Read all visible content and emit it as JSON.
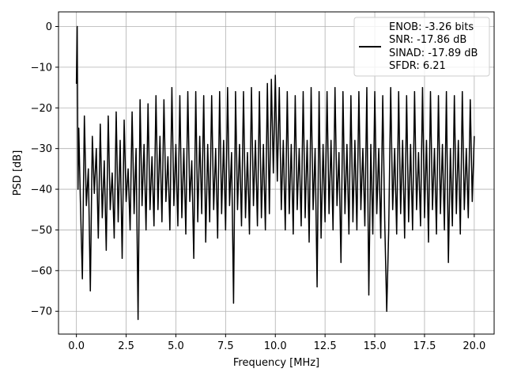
{
  "chart_data": {
    "type": "line",
    "title": "",
    "xlabel": "Frequency [MHz]",
    "ylabel": "PSD [dB]",
    "xlim": [
      -0.9,
      21.0
    ],
    "ylim": [
      -75.6,
      3.6
    ],
    "x_ticks": [
      0.0,
      2.5,
      5.0,
      7.5,
      10.0,
      12.5,
      15.0,
      17.5,
      20.0
    ],
    "x_tick_labels": [
      "0.0",
      "2.5",
      "5.0",
      "7.5",
      "10.0",
      "12.5",
      "15.0",
      "17.5",
      "20.0"
    ],
    "y_ticks": [
      0,
      -10,
      -20,
      -30,
      -40,
      -50,
      -60,
      -70
    ],
    "y_tick_labels": [
      "0",
      "−10",
      "−20",
      "−30",
      "−40",
      "−50",
      "−60",
      "−70"
    ],
    "grid": true,
    "legend_position": "top-right",
    "series": [
      {
        "name": "ENOB: -3.26 bits\nSNR: -17.86 dB\nSINAD: -17.89 dB\nSFDR: 6.21",
        "legend_lines": [
          "ENOB: -3.26 bits",
          "SNR: -17.86 dB",
          "SINAD: -17.89 dB",
          "SFDR: 6.21"
        ],
        "color": "#000000",
        "x": [
          0.0,
          0.04,
          0.08,
          0.12,
          0.2,
          0.3,
          0.4,
          0.5,
          0.6,
          0.7,
          0.8,
          0.9,
          1.0,
          1.1,
          1.2,
          1.3,
          1.4,
          1.5,
          1.6,
          1.7,
          1.8,
          1.9,
          2.0,
          2.1,
          2.2,
          2.3,
          2.4,
          2.5,
          2.6,
          2.7,
          2.8,
          2.9,
          3.0,
          3.1,
          3.2,
          3.3,
          3.4,
          3.5,
          3.6,
          3.7,
          3.8,
          3.9,
          4.0,
          4.1,
          4.2,
          4.3,
          4.4,
          4.5,
          4.6,
          4.7,
          4.8,
          4.9,
          5.0,
          5.1,
          5.2,
          5.3,
          5.4,
          5.5,
          5.6,
          5.7,
          5.8,
          5.9,
          6.0,
          6.1,
          6.2,
          6.3,
          6.4,
          6.5,
          6.6,
          6.7,
          6.8,
          6.9,
          7.0,
          7.1,
          7.2,
          7.3,
          7.4,
          7.5,
          7.6,
          7.7,
          7.8,
          7.9,
          8.0,
          8.1,
          8.2,
          8.3,
          8.4,
          8.5,
          8.6,
          8.7,
          8.8,
          8.9,
          9.0,
          9.1,
          9.2,
          9.3,
          9.4,
          9.5,
          9.6,
          9.7,
          9.8,
          9.9,
          10.0,
          10.1,
          10.2,
          10.3,
          10.4,
          10.5,
          10.6,
          10.7,
          10.8,
          10.9,
          11.0,
          11.1,
          11.2,
          11.3,
          11.4,
          11.5,
          11.6,
          11.7,
          11.8,
          11.9,
          12.0,
          12.1,
          12.2,
          12.3,
          12.4,
          12.5,
          12.6,
          12.7,
          12.8,
          12.9,
          13.0,
          13.1,
          13.2,
          13.3,
          13.4,
          13.5,
          13.6,
          13.7,
          13.8,
          13.9,
          14.0,
          14.1,
          14.2,
          14.3,
          14.4,
          14.5,
          14.6,
          14.7,
          14.8,
          14.9,
          15.0,
          15.1,
          15.2,
          15.3,
          15.4,
          15.5,
          15.6,
          15.7,
          15.8,
          15.9,
          16.0,
          16.1,
          16.2,
          16.3,
          16.4,
          16.5,
          16.6,
          16.7,
          16.8,
          16.9,
          17.0,
          17.1,
          17.2,
          17.3,
          17.4,
          17.5,
          17.6,
          17.7,
          17.8,
          17.9,
          18.0,
          18.1,
          18.2,
          18.3,
          18.4,
          18.5,
          18.6,
          18.7,
          18.8,
          18.9,
          19.0,
          19.1,
          19.2,
          19.3,
          19.4,
          19.5,
          19.6,
          19.7,
          19.8,
          19.9,
          20.0
        ],
        "y": [
          -14,
          0,
          -40,
          -25,
          -43,
          -62,
          -22,
          -44,
          -35,
          -65,
          -27,
          -41,
          -30,
          -52,
          -24,
          -47,
          -33,
          -55,
          -22,
          -45,
          -36,
          -52,
          -21,
          -48,
          -28,
          -57,
          -23,
          -43,
          -35,
          -50,
          -21,
          -46,
          -30,
          -72,
          -18,
          -44,
          -29,
          -50,
          -19,
          -45,
          -32,
          -49,
          -17,
          -45,
          -27,
          -48,
          -18,
          -43,
          -32,
          -50,
          -15,
          -44,
          -29,
          -49,
          -17,
          -47,
          -30,
          -51,
          -16,
          -43,
          -33,
          -57,
          -16,
          -48,
          -27,
          -46,
          -17,
          -53,
          -29,
          -48,
          -17,
          -45,
          -30,
          -52,
          -16,
          -46,
          -28,
          -50,
          -15,
          -44,
          -31,
          -68,
          -16,
          -45,
          -29,
          -49,
          -16,
          -47,
          -31,
          -51,
          -15,
          -44,
          -28,
          -49,
          -16,
          -47,
          -29,
          -50,
          -14,
          -46,
          -13,
          -36,
          -12,
          -38,
          -15,
          -45,
          -28,
          -50,
          -16,
          -46,
          -29,
          -51,
          -17,
          -45,
          -30,
          -49,
          -16,
          -47,
          -28,
          -53,
          -15,
          -45,
          -30,
          -64,
          -16,
          -52,
          -29,
          -48,
          -16,
          -46,
          -28,
          -50,
          -15,
          -44,
          -31,
          -58,
          -16,
          -46,
          -29,
          -51,
          -17,
          -48,
          -28,
          -50,
          -16,
          -45,
          -30,
          -49,
          -15,
          -66,
          -29,
          -51,
          -16,
          -46,
          -30,
          -52,
          -17,
          -48,
          -70,
          -50,
          -15,
          -45,
          -30,
          -51,
          -16,
          -46,
          -28,
          -52,
          -17,
          -48,
          -29,
          -50,
          -16,
          -45,
          -31,
          -49,
          -15,
          -47,
          -28,
          -53,
          -16,
          -45,
          -30,
          -51,
          -17,
          -46,
          -29,
          -50,
          -16,
          -58,
          -30,
          -49,
          -17,
          -46,
          -28,
          -51,
          -16,
          -45,
          -30,
          -47,
          -18,
          -43,
          -27
        ]
      }
    ]
  }
}
